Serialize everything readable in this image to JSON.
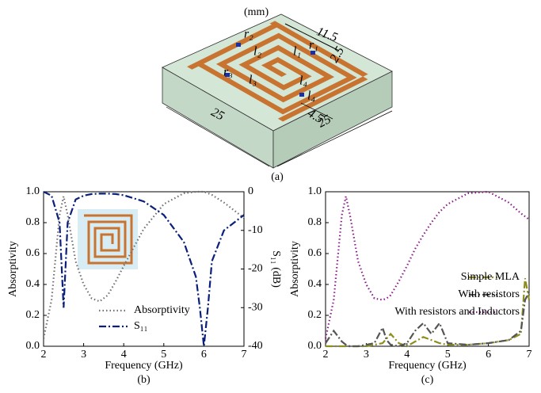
{
  "figure_a": {
    "unit": "(mm)",
    "labels": [
      "r₂",
      "l₂",
      "l₁",
      "r₁",
      "r₃",
      "l₃",
      "l₄",
      "l₄"
    ],
    "dimensions": [
      "11.5",
      "2.5",
      "25",
      "4.5",
      "25"
    ],
    "caption": "(a)"
  },
  "chart_data": [
    {
      "type": "line",
      "caption": "(b)",
      "xlabel": "Frequency (GHz)",
      "ylabel": "Absorptivity",
      "y2label": "S₁₁ (dB)",
      "x": [
        2,
        2.2,
        2.4,
        2.5,
        2.6,
        2.8,
        3,
        3.2,
        3.4,
        3.6,
        3.8,
        4,
        4.5,
        5,
        5.5,
        5.8,
        5.9,
        6,
        6.1,
        6.2,
        6.5,
        7
      ],
      "xlim": [
        2,
        7
      ],
      "xticks": [
        2,
        3,
        4,
        5,
        6,
        7
      ],
      "ylim": [
        0,
        1
      ],
      "yticks": [
        {
          "value": 0,
          "label": "0.0"
        },
        0.2,
        0.4,
        0.6,
        0.8,
        {
          "value": 1,
          "label": "1.0"
        }
      ],
      "y2lim": [
        -40,
        0
      ],
      "y2ticks": [
        0,
        -10,
        -20,
        -30,
        -40
      ],
      "legend": "lower center",
      "series": [
        {
          "name": "Absorptivity",
          "color": "#707070",
          "dash": "1.5 3",
          "values": [
            0.05,
            0.3,
            0.85,
            0.97,
            0.85,
            0.55,
            0.4,
            0.31,
            0.29,
            0.33,
            0.42,
            0.52,
            0.76,
            0.92,
            0.99,
            1.0,
            1.0,
            1.0,
            0.99,
            0.98,
            0.93,
            0.83
          ]
        },
        {
          "name": "S₁₁",
          "color": "#0a1f7a",
          "dash": "9 3 2 3",
          "axis": "y2",
          "values": [
            0,
            -1,
            -8,
            -30,
            -8,
            -2,
            -1,
            -0.6,
            -0.5,
            -0.5,
            -0.6,
            -0.9,
            -2.5,
            -6,
            -13,
            -22,
            -30,
            -40,
            -30,
            -18,
            -10,
            -6
          ]
        }
      ]
    },
    {
      "type": "line",
      "caption": "(c)",
      "xlabel": "Frequency (GHz)",
      "ylabel": "Absorptivity",
      "x": [
        2,
        2.2,
        2.4,
        2.5,
        2.6,
        2.8,
        3,
        3.2,
        3.4,
        3.5,
        3.6,
        3.8,
        4,
        4.2,
        4.4,
        4.6,
        4.8,
        5,
        5.5,
        6,
        6.5,
        6.8,
        6.9,
        7
      ],
      "xlim": [
        2,
        7
      ],
      "xticks": [
        2,
        3,
        4,
        5,
        6,
        7
      ],
      "ylim": [
        0,
        1
      ],
      "yticks": [
        {
          "value": 0,
          "label": "0.0"
        },
        0.2,
        0.4,
        0.6,
        0.8,
        {
          "value": 1,
          "label": "1.0"
        }
      ],
      "legend": "center right",
      "series": [
        {
          "name": "Simple MLA",
          "color": "#8e8e1e",
          "dash": "9 3 2 3",
          "values": [
            0,
            0,
            0,
            0,
            0,
            0,
            0,
            0.01,
            0.02,
            0.05,
            0.08,
            0.02,
            0,
            0.03,
            0.06,
            0.04,
            0.02,
            0.01,
            0.01,
            0.02,
            0.04,
            0.08,
            0.44,
            0.3
          ]
        },
        {
          "name": "With resistors",
          "color": "#555555",
          "dash": "9 3 2 3",
          "values": [
            0.02,
            0.1,
            0.03,
            0.01,
            0,
            0,
            0.01,
            0.02,
            0.12,
            0.04,
            0.01,
            0,
            0.02,
            0.1,
            0.15,
            0.08,
            0.15,
            0.02,
            0.01,
            0.02,
            0.04,
            0.1,
            0.3,
            0.35
          ]
        },
        {
          "name": "With resistors and Inductors",
          "color": "#8b1a8b",
          "dash": "1.5 3",
          "values": [
            0.05,
            0.3,
            0.85,
            0.97,
            0.85,
            0.55,
            0.4,
            0.31,
            0.3,
            0.31,
            0.33,
            0.42,
            0.52,
            0.63,
            0.72,
            0.8,
            0.87,
            0.92,
            0.99,
            1.0,
            0.93,
            0.86,
            0.84,
            0.82
          ]
        }
      ]
    }
  ]
}
